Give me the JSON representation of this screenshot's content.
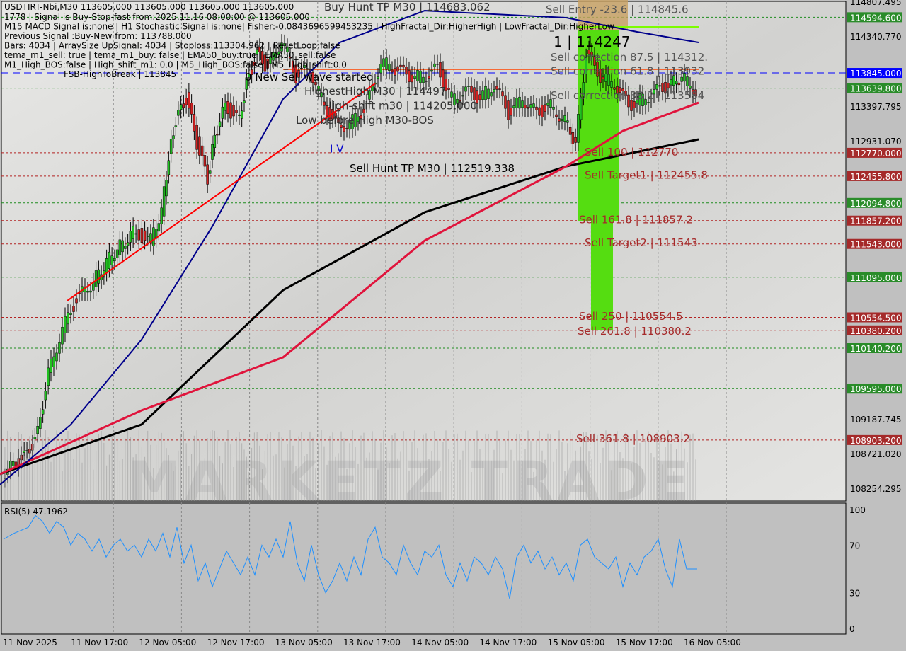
{
  "chart_data": {
    "type": "candlestick",
    "symbol_header": "USDTIRT-Nbi,M30  113605.000 113605.000 113605.000 113605.000",
    "info_lines": [
      "1778 | Signal is Buy-Stop-fast from:2025.11.16 08:00:00 @ 113605.000",
      "M15 MACD Signal is:none | H1 Stochastic Signal is:none| Fisher:-0.0843696599453235 | HighFractal_Dir:HigherHigh | LowFractal_Dir:HigherLow",
      "Previous Signal :Buy-New from: 113788.000",
      "Bars: 4034 | ArraySize UpSignal: 4034 | Stoploss:113304.962 | ResetLoop:false",
      "tema_m1_sell: true | tema_m1_buy: false | EMA50_buy:true | EMA50_sell:false",
      "M1_High_BOS:false | High_shift_m1: 0.0 | M5_High_BOS:false | M5_High_shift:0.0",
      "FSB-HighToBreak | 113845"
    ],
    "y_range": [
      108254.295,
      114807.495
    ],
    "y_ticks": [
      "114807.495",
      "114340.770",
      "113397.795",
      "112931.070",
      "109187.745",
      "108721.020",
      "108254.295"
    ],
    "x_ticks": [
      "11 Nov 2025",
      "11 Nov 17:00",
      "12 Nov 05:00",
      "12 Nov 17:00",
      "13 Nov 05:00",
      "13 Nov 17:00",
      "14 Nov 05:00",
      "14 Nov 17:00",
      "15 Nov 05:00",
      "15 Nov 17:00",
      "16 Nov 05:00"
    ],
    "price_tags": [
      {
        "value": "114594.600",
        "color": "#2a8c2a"
      },
      {
        "value": "113845.000",
        "color": "#0000ff"
      },
      {
        "value": "113639.800",
        "color": "#2a8c2a"
      },
      {
        "value": "112770.000",
        "color": "#a52a2a"
      },
      {
        "value": "112455.800",
        "color": "#a52a2a"
      },
      {
        "value": "112094.800",
        "color": "#2a8c2a"
      },
      {
        "value": "111857.200",
        "color": "#a52a2a"
      },
      {
        "value": "111543.000",
        "color": "#a52a2a"
      },
      {
        "value": "111095.000",
        "color": "#2a8c2a"
      },
      {
        "value": "110554.500",
        "color": "#a52a2a"
      },
      {
        "value": "110380.200",
        "color": "#a52a2a"
      },
      {
        "value": "110140.200",
        "color": "#2a8c2a"
      },
      {
        "value": "109595.000",
        "color": "#2a8c2a"
      },
      {
        "value": "108903.200",
        "color": "#a52a2a"
      }
    ],
    "annotations": [
      {
        "text": "0 New Sell wave started",
        "price": 114760,
        "t": 346,
        "color": "#000000"
      },
      {
        "text": "Buy Hunt TP M30 | 114683.062",
        "price": 114790,
        "t": 458,
        "color": "#333333"
      },
      {
        "text": "HighestHigh   M30 | 114497",
        "price": 114590,
        "t": 430,
        "color": "#333333"
      },
      {
        "text": "High-shift m30 | 114205.000",
        "price": 114260,
        "t": 458,
        "color": "#333333"
      },
      {
        "text": "Low before High M30-BOS",
        "price": 113950,
        "t": 418,
        "color": "#333333"
      },
      {
        "text": "Sell Entry -23.6 | 114845.6",
        "price": 114700,
        "t": 771,
        "color": "#555555"
      },
      {
        "text": "1 | 114247",
        "price": 114400,
        "t": 782,
        "color": "#000000",
        "big": true
      },
      {
        "text": "Sell correction 87.5 | 114312.",
        "price": 114190,
        "t": 778,
        "color": "#555555"
      },
      {
        "text": "Sell correction 61.8 | 113932",
        "price": 113890,
        "t": 778,
        "color": "#555555"
      },
      {
        "text": "Sell correction 38.2 | 113584",
        "price": 113540,
        "t": 778,
        "color": "#555555"
      },
      {
        "text": "I V",
        "price": 112820,
        "t": 466,
        "color": "#0000cc"
      },
      {
        "text": "Sell Hunt TP M30 | 112519.338",
        "price": 112560,
        "t": 494,
        "color": "#000000"
      },
      {
        "text": "Sell 100 | 112770",
        "price": 112780,
        "t": 826,
        "color": "#a52a2a"
      },
      {
        "text": "Sell Target1 | 112455.8",
        "price": 112470,
        "t": 826,
        "color": "#a52a2a"
      },
      {
        "text": "Sell 161.8 | 111857.2",
        "price": 111870,
        "t": 818,
        "color": "#a52a2a"
      },
      {
        "text": "Sell Target2 | 111543",
        "price": 111560,
        "t": 826,
        "color": "#a52a2a"
      },
      {
        "text": "Sell  250 | 110554.5",
        "price": 110570,
        "t": 818,
        "color": "#a52a2a"
      },
      {
        "text": "Sell  261.8 | 110380.2",
        "price": 110390,
        "t": 816,
        "color": "#a52a2a"
      },
      {
        "text": "Sell  361.8 | 108903.2",
        "price": 108920,
        "t": 814,
        "color": "#a52a2a"
      }
    ],
    "price_series": {
      "t": [
        5,
        40,
        55,
        70,
        90,
        110,
        130,
        160,
        190,
        215,
        230,
        240,
        250,
        265,
        280,
        295,
        305,
        320,
        340,
        350,
        365,
        380,
        400,
        420,
        440,
        460,
        480,
        500,
        520,
        540,
        560,
        580,
        600,
        620,
        640,
        660,
        680,
        700,
        720,
        740,
        760,
        780,
        800,
        815,
        830,
        850,
        870,
        890,
        910,
        930,
        950,
        965,
        985
      ],
      "close": [
        108450,
        108700,
        109000,
        109800,
        110400,
        110800,
        111000,
        111400,
        111700,
        111600,
        112000,
        112700,
        113200,
        113500,
        112900,
        112400,
        113000,
        113400,
        113200,
        113700,
        114100,
        113900,
        114300,
        113800,
        113900,
        113400,
        113100,
        113200,
        113400,
        114000,
        113900,
        113800,
        113800,
        113900,
        113500,
        113600,
        113500,
        113700,
        113300,
        113500,
        113300,
        113400,
        113200,
        112900,
        114100,
        113800,
        113700,
        113400,
        113500,
        113600,
        113700,
        113800,
        113600
      ]
    },
    "ema_black": {
      "t": [
        0,
        200,
        400,
        600,
        800,
        987
      ],
      "values": [
        108445,
        109112,
        110922,
        111969,
        112588,
        112950
      ],
      "color": "#000000"
    },
    "ema_red": {
      "t": [
        0,
        200,
        400,
        600,
        800,
        880,
        987
      ],
      "values": [
        108445,
        109302,
        110017,
        111588,
        112588,
        113064,
        113445
      ],
      "color": "#e0143c"
    },
    "ma_blue": {
      "t": [
        0,
        100,
        200,
        300,
        400,
        480,
        600,
        800,
        900,
        987
      ],
      "values": [
        108302,
        109112,
        110255,
        111779,
        113493,
        114255,
        114683,
        114588,
        114398,
        114255
      ],
      "color": "#00008b"
    },
    "trendline": {
      "t": [
        95,
        530
      ],
      "values": [
        110779,
        113703
      ],
      "color": "#ff0000"
    },
    "rsi": {
      "label": "RSI(5) 47.1962",
      "ticks": [
        "100",
        "70",
        "30",
        "0"
      ],
      "range": [
        0,
        100
      ],
      "t": [
        5,
        20,
        40,
        50,
        60,
        70,
        80,
        90,
        100,
        110,
        120,
        130,
        140,
        150,
        160,
        170,
        180,
        190,
        200,
        210,
        220,
        230,
        240,
        250,
        260,
        270,
        280,
        290,
        300,
        310,
        320,
        330,
        340,
        350,
        360,
        370,
        380,
        390,
        400,
        410,
        420,
        430,
        440,
        450,
        460,
        470,
        480,
        490,
        500,
        510,
        520,
        530,
        540,
        550,
        560,
        570,
        580,
        590,
        600,
        610,
        620,
        630,
        640,
        650,
        660,
        670,
        680,
        690,
        700,
        710,
        720,
        730,
        740,
        750,
        760,
        770,
        780,
        790,
        800,
        810,
        820,
        830,
        840,
        850,
        860,
        870,
        880,
        890,
        900,
        910,
        920,
        930,
        940,
        950,
        960,
        970,
        985
      ],
      "values": [
        75,
        80,
        85,
        95,
        90,
        80,
        90,
        85,
        70,
        80,
        75,
        65,
        75,
        60,
        70,
        75,
        65,
        70,
        60,
        75,
        65,
        80,
        60,
        85,
        55,
        70,
        40,
        55,
        35,
        50,
        65,
        55,
        45,
        60,
        45,
        70,
        60,
        75,
        60,
        90,
        55,
        40,
        70,
        45,
        30,
        40,
        55,
        40,
        60,
        45,
        75,
        85,
        60,
        55,
        45,
        70,
        55,
        45,
        65,
        60,
        70,
        45,
        35,
        55,
        40,
        60,
        55,
        45,
        60,
        50,
        25,
        60,
        70,
        55,
        65,
        50,
        60,
        45,
        55,
        40,
        70,
        75,
        60,
        55,
        50,
        60,
        35,
        55,
        45,
        60,
        65,
        75,
        50,
        35,
        75,
        50,
        50
      ],
      "color": "#1e90ff"
    },
    "watermark": "MARKETZ TRADE"
  }
}
